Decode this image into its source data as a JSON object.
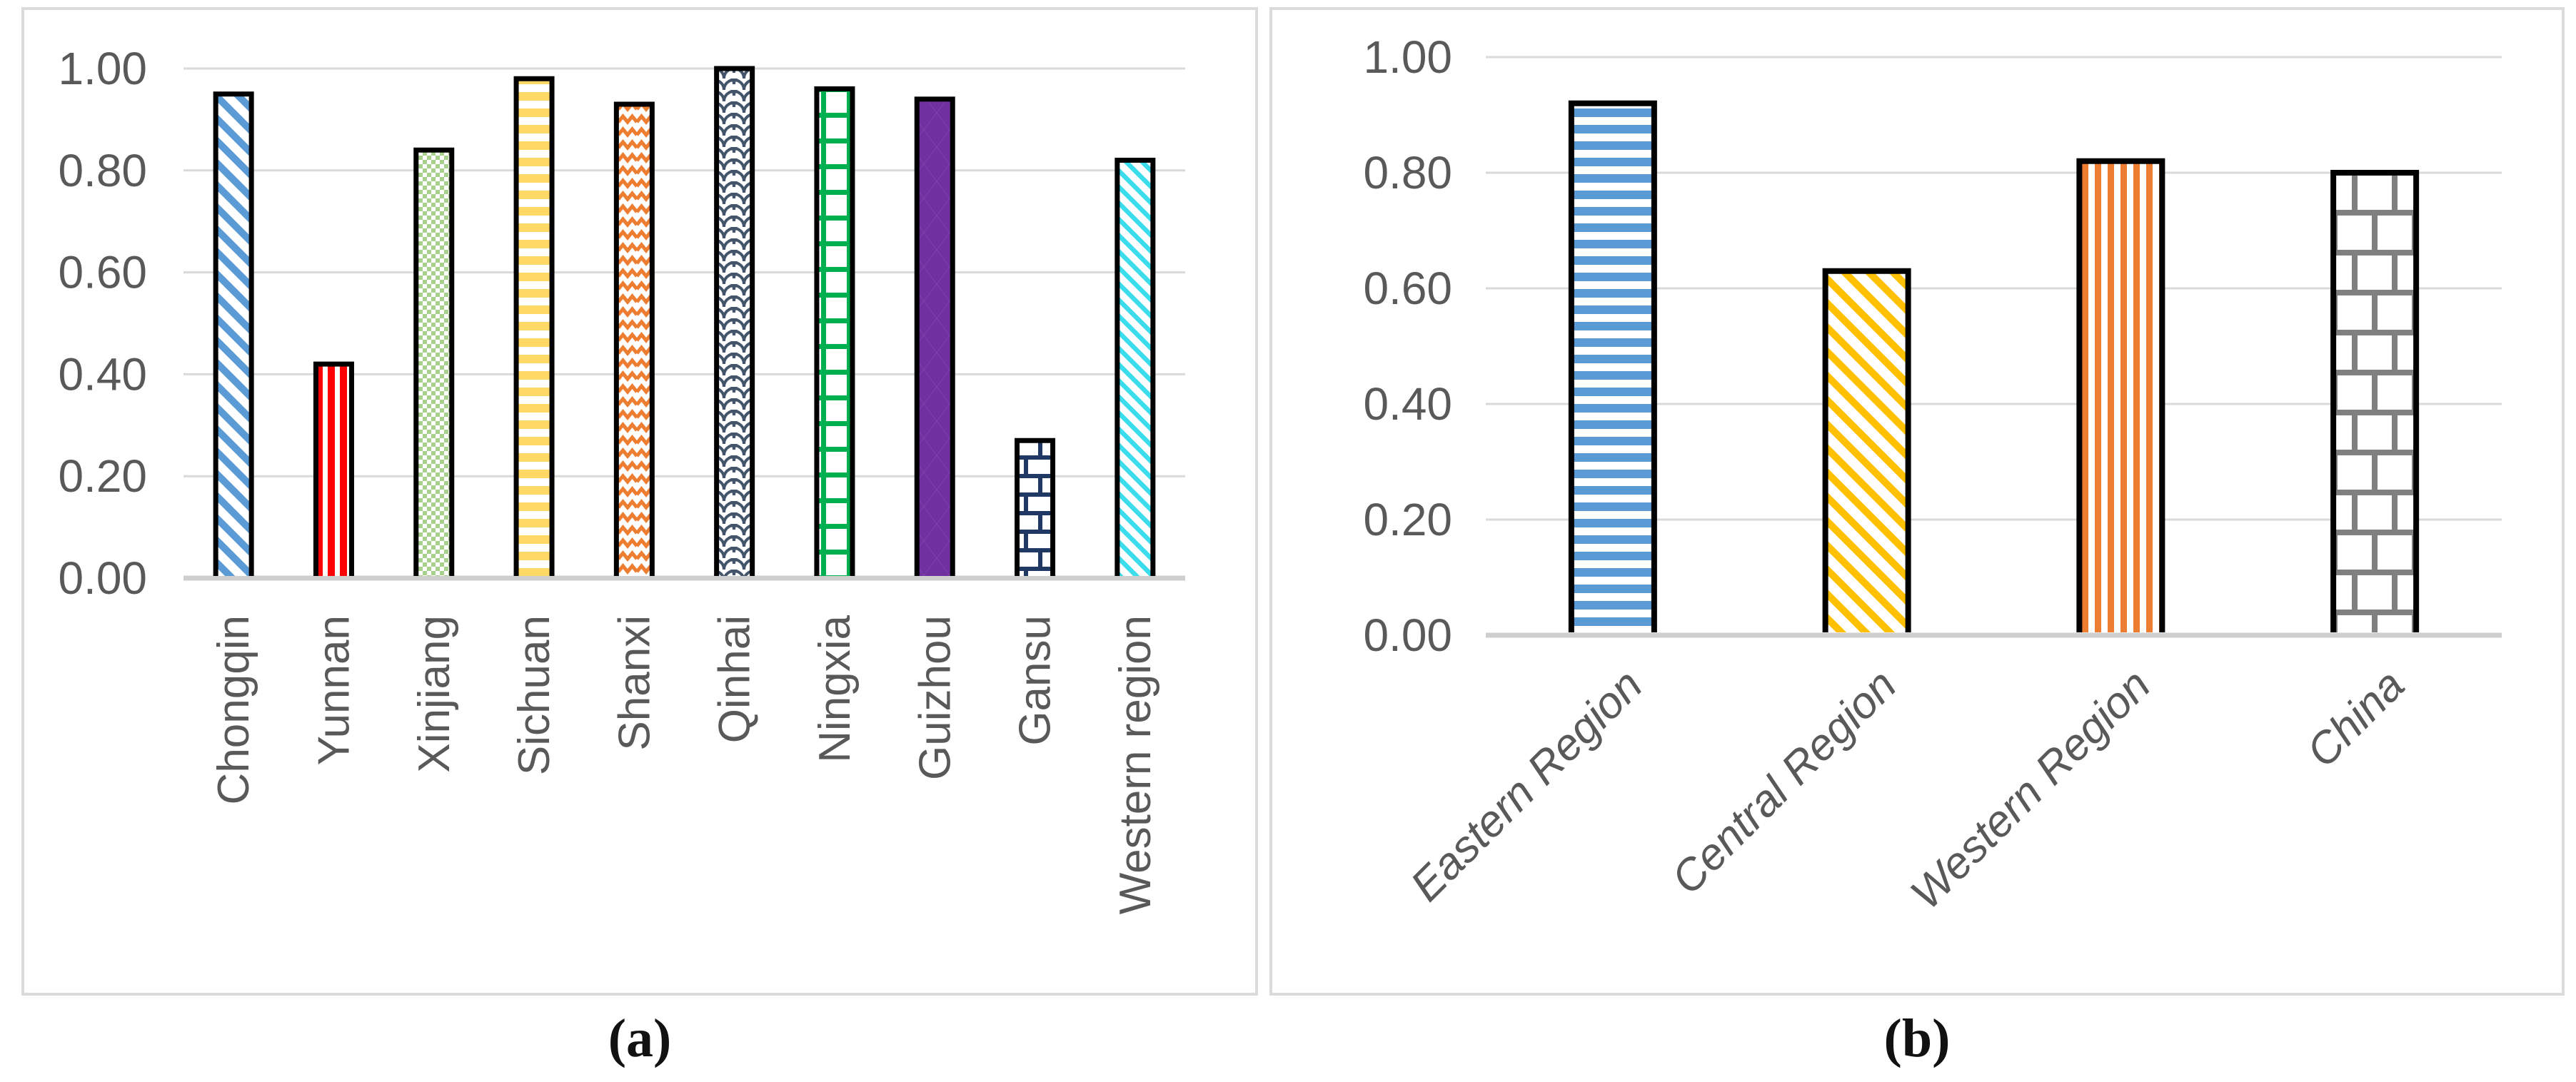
{
  "figure": {
    "captions": {
      "a": "(a)",
      "b": "(b)"
    },
    "background": "#ffffff",
    "panel_border_color": "#dbdbdb"
  },
  "chart_data": [
    {
      "id": "a",
      "type": "bar",
      "title": "",
      "xlabel": "",
      "ylabel": "",
      "ylim": [
        0,
        1
      ],
      "ytick_labels": [
        "0.00",
        "0.20",
        "0.40",
        "0.60",
        "0.80",
        "1.00"
      ],
      "grid": true,
      "legend": false,
      "x_label_rotation": 90,
      "x_label_italic": false,
      "categories": [
        "Chongqin",
        "Yunnan",
        "Xinjiang",
        "Sichuan",
        "Shanxi",
        "Qinhai",
        "Ningxia",
        "Guizhou",
        "Gansu",
        "Western region"
      ],
      "values": [
        0.95,
        0.42,
        0.84,
        0.98,
        0.93,
        1.0,
        0.96,
        0.94,
        0.27,
        0.82
      ],
      "bar_styles": [
        {
          "pattern": "diagonal-stripes",
          "color": "#5B9BD5"
        },
        {
          "pattern": "vertical-stripes",
          "color": "#FF0000"
        },
        {
          "pattern": "checkerboard",
          "color": "#A9D18E"
        },
        {
          "pattern": "horizontal-stripes",
          "color": "#FFD966"
        },
        {
          "pattern": "zigzag",
          "color": "#ED7D31"
        },
        {
          "pattern": "shingle",
          "color": "#44546A"
        },
        {
          "pattern": "grid",
          "color": "#00B050"
        },
        {
          "pattern": "diamonds",
          "color": "#7030A0"
        },
        {
          "pattern": "brick",
          "color": "#1F3864"
        },
        {
          "pattern": "diagonal-stripes",
          "color": "#3BDCEC"
        }
      ],
      "tick_color": "#595959",
      "grid_color": "#D9D9D9",
      "axis_line_color": "#CFCFCF",
      "bar_border_color": "#000000"
    },
    {
      "id": "b",
      "type": "bar",
      "title": "",
      "xlabel": "",
      "ylabel": "",
      "ylim": [
        0,
        1
      ],
      "ytick_labels": [
        "0.00",
        "0.20",
        "0.40",
        "0.60",
        "0.80",
        "1.00"
      ],
      "grid": true,
      "legend": false,
      "x_label_rotation": 45,
      "x_label_italic": true,
      "categories": [
        "Eastern Region",
        "Central Region",
        "Western Region",
        "China"
      ],
      "values": [
        0.92,
        0.63,
        0.82,
        0.8
      ],
      "bar_styles": [
        {
          "pattern": "horizontal-stripes",
          "color": "#5B9BD5"
        },
        {
          "pattern": "diagonal-stripes",
          "color": "#FFC000"
        },
        {
          "pattern": "vertical-stripes",
          "color": "#ED7D31"
        },
        {
          "pattern": "brick-grid",
          "color": "#808080"
        }
      ],
      "tick_color": "#595959",
      "grid_color": "#D9D9D9",
      "axis_line_color": "#CFCFCF",
      "bar_border_color": "#000000"
    }
  ]
}
